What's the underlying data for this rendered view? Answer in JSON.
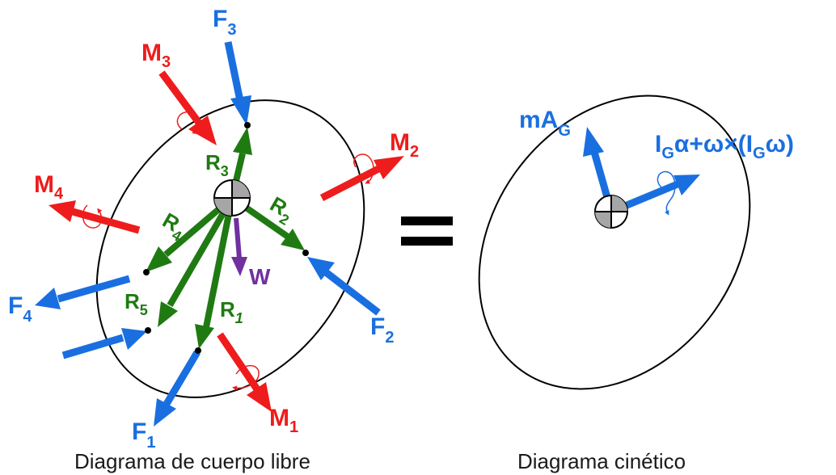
{
  "colors": {
    "force": "#1a6fe0",
    "moment": "#ee1c1c",
    "reaction": "#1f7a12",
    "weight": "#7030a0",
    "outline": "#000000",
    "center_fill": "#a6a6a6"
  },
  "left": {
    "caption": "Diagrama de cuerpo libre",
    "forces": [
      {
        "base": "F",
        "sub": "1"
      },
      {
        "base": "F",
        "sub": "2"
      },
      {
        "base": "F",
        "sub": "3"
      },
      {
        "base": "F",
        "sub": "4"
      }
    ],
    "moments": [
      {
        "base": "M",
        "sub": "1"
      },
      {
        "base": "M",
        "sub": "2"
      },
      {
        "base": "M",
        "sub": "3"
      },
      {
        "base": "M",
        "sub": "4"
      }
    ],
    "reactions": [
      {
        "base": "R",
        "sub": "1"
      },
      {
        "base": "R",
        "sub": "2"
      },
      {
        "base": "R",
        "sub": "3"
      },
      {
        "base": "R",
        "sub": "4"
      },
      {
        "base": "R",
        "sub": "5"
      }
    ],
    "weight": "W"
  },
  "equals": "=",
  "right": {
    "caption": "Diagrama cinético",
    "linear": {
      "pre": "mA",
      "sub": "G"
    },
    "angular": {
      "i": "I",
      "sub1": "G",
      "mid": "α+ω×(I",
      "sub2": "G",
      "end": "ω)"
    }
  }
}
